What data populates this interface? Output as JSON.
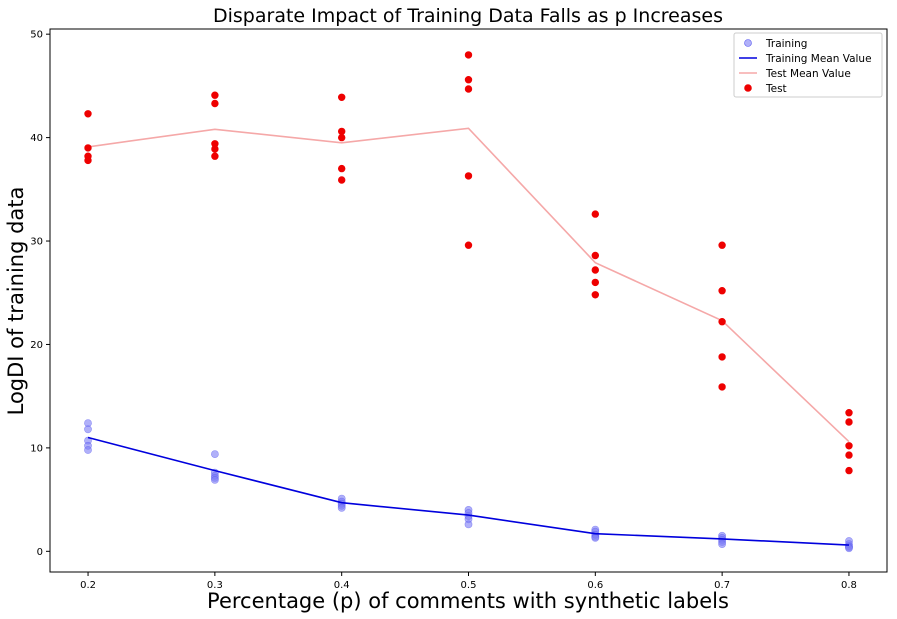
{
  "chart_data": {
    "type": "scatter",
    "title": "Disparate Impact of Training Data Falls as p Increases",
    "xlabel": "Percentage (p) of comments with synthetic labels",
    "ylabel": "LogDI of training data",
    "xlim": [
      0.17,
      0.83
    ],
    "ylim": [
      -2,
      50.5
    ],
    "xticks": [
      0.2,
      0.3,
      0.4,
      0.5,
      0.6,
      0.7,
      0.8
    ],
    "yticks": [
      0,
      10,
      20,
      30,
      40,
      50
    ],
    "grid": false,
    "legend_position": "top-right",
    "series": [
      {
        "name": "Training",
        "kind": "scatter",
        "color": "#7b7bf5",
        "points": [
          [
            0.2,
            12.4
          ],
          [
            0.2,
            11.8
          ],
          [
            0.2,
            10.7
          ],
          [
            0.2,
            10.2
          ],
          [
            0.2,
            9.8
          ],
          [
            0.3,
            9.4
          ],
          [
            0.3,
            7.6
          ],
          [
            0.3,
            7.3
          ],
          [
            0.3,
            7.1
          ],
          [
            0.3,
            6.9
          ],
          [
            0.4,
            5.1
          ],
          [
            0.4,
            4.8
          ],
          [
            0.4,
            4.6
          ],
          [
            0.4,
            4.4
          ],
          [
            0.4,
            4.2
          ],
          [
            0.5,
            4.0
          ],
          [
            0.5,
            3.7
          ],
          [
            0.5,
            3.4
          ],
          [
            0.5,
            3.1
          ],
          [
            0.5,
            2.6
          ],
          [
            0.6,
            2.1
          ],
          [
            0.6,
            1.9
          ],
          [
            0.6,
            1.6
          ],
          [
            0.6,
            1.4
          ],
          [
            0.6,
            1.3
          ],
          [
            0.7,
            1.5
          ],
          [
            0.7,
            1.3
          ],
          [
            0.7,
            1.1
          ],
          [
            0.7,
            0.9
          ],
          [
            0.7,
            0.7
          ],
          [
            0.8,
            1.0
          ],
          [
            0.8,
            0.7
          ],
          [
            0.8,
            0.5
          ],
          [
            0.8,
            0.4
          ],
          [
            0.8,
            0.3
          ]
        ]
      },
      {
        "name": "Training Mean Value",
        "kind": "line",
        "color": "#0000dd",
        "points": [
          [
            0.2,
            11.0
          ],
          [
            0.3,
            7.8
          ],
          [
            0.4,
            4.7
          ],
          [
            0.5,
            3.5
          ],
          [
            0.6,
            1.7
          ],
          [
            0.7,
            1.2
          ],
          [
            0.8,
            0.6
          ]
        ]
      },
      {
        "name": "Test Mean Value",
        "kind": "line",
        "color": "#f5a8a8",
        "points": [
          [
            0.2,
            39.1
          ],
          [
            0.3,
            40.8
          ],
          [
            0.4,
            39.5
          ],
          [
            0.5,
            40.9
          ],
          [
            0.6,
            27.9
          ],
          [
            0.7,
            22.3
          ],
          [
            0.8,
            10.6
          ]
        ]
      },
      {
        "name": "Test",
        "kind": "scatter",
        "color": "#ee0000",
        "points": [
          [
            0.2,
            42.3
          ],
          [
            0.2,
            39.0
          ],
          [
            0.2,
            38.2
          ],
          [
            0.2,
            37.8
          ],
          [
            0.3,
            44.1
          ],
          [
            0.3,
            43.3
          ],
          [
            0.3,
            39.4
          ],
          [
            0.3,
            38.9
          ],
          [
            0.3,
            38.2
          ],
          [
            0.4,
            43.9
          ],
          [
            0.4,
            40.6
          ],
          [
            0.4,
            40.0
          ],
          [
            0.4,
            37.0
          ],
          [
            0.4,
            35.9
          ],
          [
            0.5,
            48.0
          ],
          [
            0.5,
            45.6
          ],
          [
            0.5,
            44.7
          ],
          [
            0.5,
            36.3
          ],
          [
            0.5,
            29.6
          ],
          [
            0.6,
            32.6
          ],
          [
            0.6,
            28.6
          ],
          [
            0.6,
            27.2
          ],
          [
            0.6,
            26.0
          ],
          [
            0.6,
            24.8
          ],
          [
            0.7,
            29.6
          ],
          [
            0.7,
            25.2
          ],
          [
            0.7,
            22.2
          ],
          [
            0.7,
            18.8
          ],
          [
            0.7,
            15.9
          ],
          [
            0.8,
            13.4
          ],
          [
            0.8,
            12.5
          ],
          [
            0.8,
            10.2
          ],
          [
            0.8,
            9.3
          ],
          [
            0.8,
            7.8
          ]
        ]
      }
    ]
  }
}
